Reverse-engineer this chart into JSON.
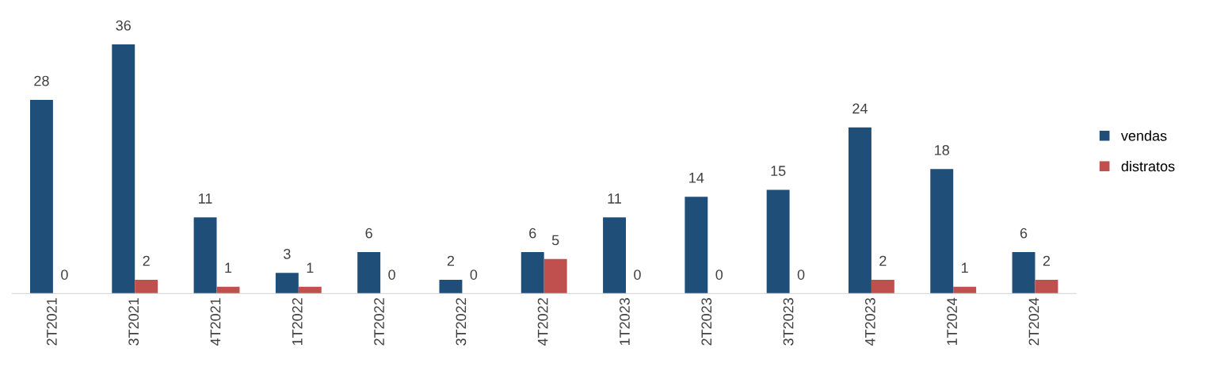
{
  "chart_data": {
    "type": "bar",
    "categories": [
      "2T2021",
      "3T2021",
      "4T2021",
      "1T2022",
      "2T2022",
      "3T2022",
      "4T2022",
      "1T2023",
      "2T2023",
      "3T2023",
      "4T2023",
      "1T2024",
      "2T2024"
    ],
    "series": [
      {
        "name": "vendas",
        "color": "#1f4e79",
        "values": [
          28,
          36,
          11,
          3,
          6,
          2,
          6,
          11,
          14,
          15,
          24,
          18,
          6
        ]
      },
      {
        "name": "distratos",
        "color": "#c0504d",
        "values": [
          0,
          2,
          1,
          1,
          0,
          0,
          5,
          0,
          0,
          0,
          2,
          1,
          2
        ]
      }
    ],
    "data_labels": true,
    "legend": "right"
  }
}
